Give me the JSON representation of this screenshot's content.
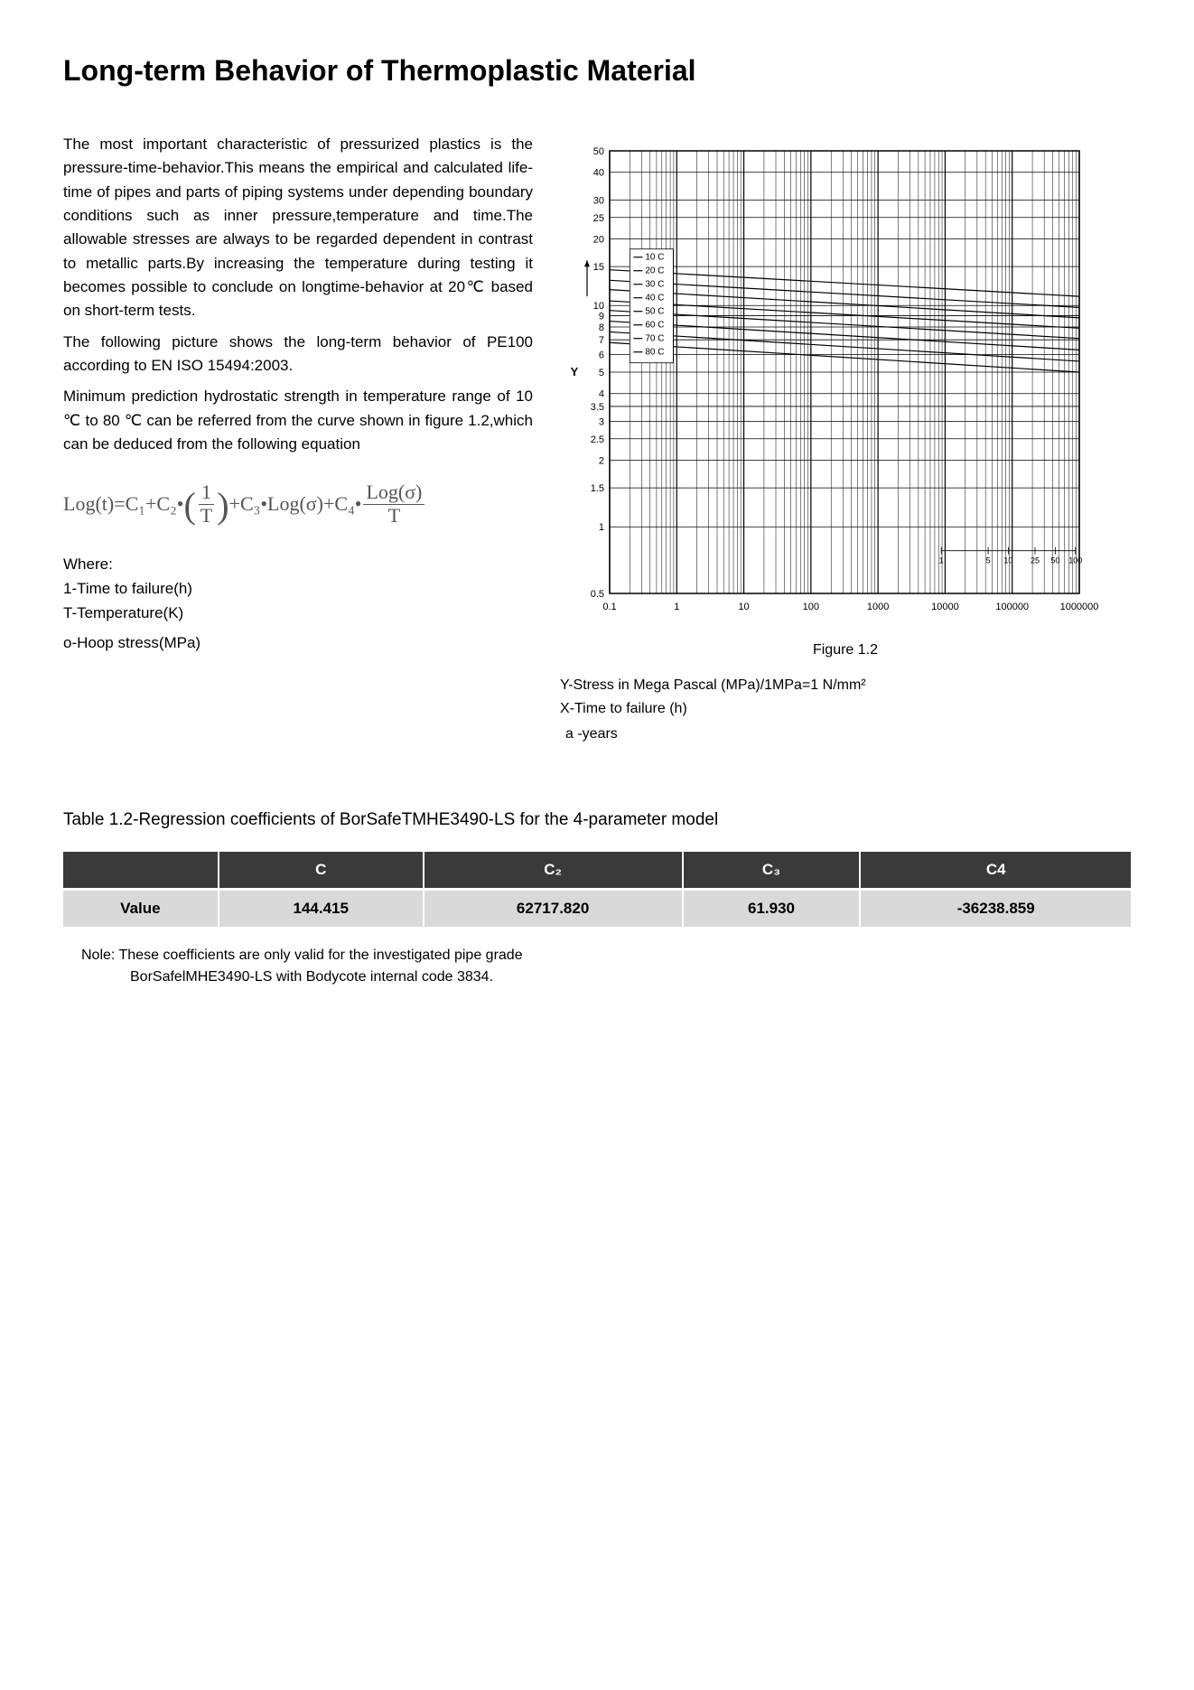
{
  "title": "Long-term Behavior of Thermoplastic Material",
  "body": {
    "p1": "The most important characteristic of pressurized plastics is the pressure-time-behavior.This means the empirical and calculated life-time of pipes and parts of piping systems under depending boundary conditions such as inner pressure,temperature and time.The allowable stresses are always to be regarded dependent in contrast to metallic parts.By increasing the temperature during testing it becomes possible to conclude on longtime-behavior at 20℃ based on short-term tests.",
    "p2": "The following picture shows the long-term behavior of PE100  according to EN ISO 15494:2003.",
    "p3": "Minimum prediction hydrostatic strength in temperature range of 10 ℃ to 80 ℃ can be referred from the curve shown in figure 1.2,which can be deduced from the following equation"
  },
  "equation": {
    "lhs": "Log(t)",
    "eq": " = ",
    "c1": "C₁",
    "plus": " + ",
    "c2": "C₂",
    "dot": " • ",
    "frac1_num": "1",
    "frac1_den": "T",
    "c3": "C₃",
    "logsig": "Log(σ)",
    "c4": "C₄",
    "frac2_num": "Log(σ)",
    "frac2_den": "T"
  },
  "where": {
    "heading": "Where:",
    "l1": "1-Time to failure(h)",
    "l2": "T-Temperature(K)",
    "l3": "o-Hoop stress(MPa)"
  },
  "chart": {
    "type": "log-log-line",
    "caption": "Figure 1.2",
    "x_ticks": [
      "0.1",
      "1",
      "10",
      "100",
      "1000",
      "10000",
      "100000",
      "1000000"
    ],
    "y_ticks": [
      "0.5",
      "1",
      "1.5",
      "2",
      "2.5",
      "3",
      "3.5",
      "4",
      "5",
      "6",
      "7",
      "8",
      "9",
      "10",
      "15",
      "20",
      "25",
      "30",
      "40",
      "50"
    ],
    "y_axis_symbol": "Y",
    "legend_box": [
      "10 C",
      "20 C",
      "30 C",
      "40 C",
      "50 C",
      "60 C",
      "70 C",
      "80 C"
    ],
    "curves": [
      {
        "label": "10 C",
        "y_start": 14.5,
        "y_end": 11.0
      },
      {
        "label": "20 C",
        "y_start": 13.0,
        "y_end": 9.8
      },
      {
        "label": "30 C",
        "y_start": 11.8,
        "y_end": 8.8
      },
      {
        "label": "40 C",
        "y_start": 10.5,
        "y_end": 7.9
      },
      {
        "label": "50 C",
        "y_start": 9.5,
        "y_end": 7.1
      },
      {
        "label": "60 C",
        "y_start": 8.5,
        "y_end": 6.3
      },
      {
        "label": "70 C",
        "y_start": 7.6,
        "y_end": 5.6
      },
      {
        "label": "80 C",
        "y_start": 6.8,
        "y_end": 5.0
      }
    ],
    "second_x_marks": [
      "1",
      "5",
      "10",
      "25",
      "50",
      "100"
    ],
    "colors": {
      "background": "#ffffff",
      "grid": "#000000",
      "line": "#000000",
      "text": "#000000"
    },
    "font_size_ticks": 11,
    "line_width": 1.2
  },
  "axis_desc": {
    "y": "Y-Stress in Mega Pascal (MPa)/1MPa=1 N/mm²",
    "x": "X-Time to failure (h)",
    "a": "a -years"
  },
  "table": {
    "title": "Table 1.2-Regression coefficients of BorSafeTMHE3490-LS for the 4-parameter model",
    "headers": [
      "",
      "C",
      "C₂",
      "C₃",
      "C4"
    ],
    "row_label": "Value",
    "values": [
      "144.415",
      "62717.820",
      "61.930",
      "-36238.859"
    ]
  },
  "note": {
    "l1": "Nole: These coefficients are only valid  for the investigated pipe grade",
    "l2": "BorSafelMHE3490-LS with Bodycote internal code 3834."
  }
}
